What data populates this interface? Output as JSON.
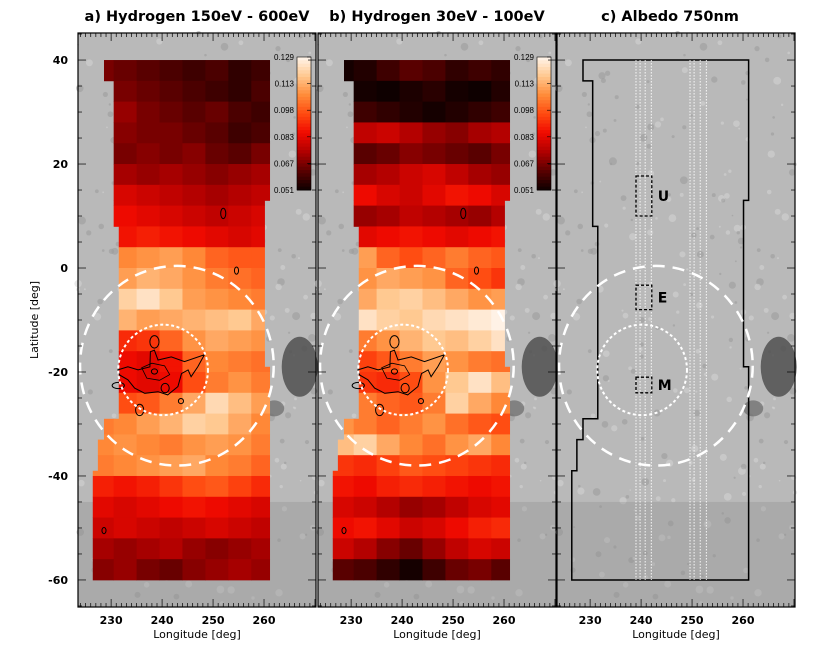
{
  "shared": {
    "xlabel": "Longitude [deg]",
    "ylabel": "Latitude [deg]",
    "xlim": [
      223.5,
      270.2
    ],
    "ylim": [
      -65.2,
      45.2
    ],
    "xticks": [
      230,
      240,
      250,
      260
    ],
    "yticks": [
      40,
      20,
      0,
      -20,
      -40,
      -60
    ],
    "colormap": [
      "#0e0000",
      "#5a0000",
      "#b00000",
      "#f00a00",
      "#ff4a10",
      "#ff8c3a",
      "#ffc890",
      "#fff6ee"
    ],
    "colorbar": {
      "min": 0.051,
      "max": 0.129,
      "ticks": [
        "0.129",
        "0.113",
        "0.098",
        "0.083",
        "0.067",
        "0.051"
      ]
    },
    "footprint": [
      {
        "lat_top": 40,
        "lat_bottom": 36,
        "lon_min": 228.6,
        "lon_max": 261.1
      },
      {
        "lat_top": 36,
        "lat_bottom": 13,
        "lon_min": 230.5,
        "lon_max": 261.1
      },
      {
        "lat_top": 13,
        "lat_bottom": 8,
        "lon_min": 230.5,
        "lon_max": 260.1
      },
      {
        "lat_top": 8,
        "lat_bottom": -19,
        "lon_min": 231.5,
        "lon_max": 260.1
      },
      {
        "lat_top": -19,
        "lat_bottom": -29,
        "lon_min": 231.5,
        "lon_max": 261.1
      },
      {
        "lat_top": -29,
        "lat_bottom": -33,
        "lon_min": 228.6,
        "lon_max": 261.1
      },
      {
        "lat_top": -33,
        "lat_bottom": -39,
        "lon_min": 227.4,
        "lon_max": 261.1
      },
      {
        "lat_top": -39,
        "lat_bottom": -60,
        "lon_min": 226.4,
        "lon_max": 261.1
      }
    ],
    "outer_ring": {
      "lon": 242.9,
      "lat": -18.8,
      "r_lon": 19.0,
      "r_lat": 19.2
    },
    "inner_ring": {
      "lon": 240.2,
      "lat": -19.6,
      "r_lon": 8.8,
      "r_lat": 8.7
    },
    "contour_main": [
      [
        231.3,
        -19.6
      ],
      [
        233.3,
        -19.0
      ],
      [
        235.3,
        -19.6
      ],
      [
        237.6,
        -19.0
      ],
      [
        237.7,
        -16.1
      ],
      [
        238.5,
        -15.8
      ],
      [
        239.2,
        -17.7
      ],
      [
        241.8,
        -17.1
      ],
      [
        244.4,
        -18.0
      ],
      [
        248.3,
        -16.7
      ],
      [
        247.0,
        -19.0
      ],
      [
        245.7,
        -20.9
      ],
      [
        245.1,
        -19.6
      ],
      [
        243.8,
        -20.3
      ],
      [
        243.1,
        -22.8
      ],
      [
        241.1,
        -24.4
      ],
      [
        239.2,
        -23.8
      ],
      [
        236.6,
        -24.1
      ],
      [
        234.6,
        -23.1
      ],
      [
        233.3,
        -21.5
      ],
      [
        231.7,
        -20.6
      ]
    ],
    "contour_inner": [
      [
        236.0,
        -19.2
      ],
      [
        238.0,
        -18.3
      ],
      [
        240.5,
        -18.8
      ],
      [
        241.5,
        -20.5
      ],
      [
        239.5,
        -21.6
      ],
      [
        237.0,
        -21.2
      ]
    ],
    "contour_loops": [
      [
        238.5,
        -14.2,
        0.9,
        1.2
      ],
      [
        235.6,
        -27.3,
        0.8,
        1.1
      ],
      [
        238.5,
        -19.9,
        0.6,
        0.5
      ],
      [
        240.6,
        -23.1,
        0.8,
        0.9
      ],
      [
        231.4,
        -22.6,
        1.2,
        0.6
      ],
      [
        243.7,
        -25.6,
        0.5,
        0.5
      ],
      [
        252.0,
        10.5,
        0.5,
        1.0
      ],
      [
        254.6,
        -0.5,
        0.4,
        0.7
      ],
      [
        228.6,
        -50.5,
        0.4,
        0.6
      ]
    ]
  },
  "chart_data": [
    {
      "type": "heatmap",
      "title": "a) Hydrogen 150eV - 600eV",
      "xlabel": "Longitude [deg]",
      "ylabel": "Latitude [deg]",
      "lat_edges": [
        40,
        36,
        32,
        28,
        24,
        20,
        16,
        12,
        8,
        4,
        0,
        -4,
        -8,
        -12,
        -16,
        -20,
        -24,
        -28,
        -32,
        -36,
        -40,
        -44,
        -48,
        -52,
        -56,
        -60
      ],
      "lon_edges": [
        226,
        230.5,
        235,
        239.5,
        244,
        248.5,
        253,
        257.5,
        262
      ],
      "values": [
        [
          0.066,
          0.064,
          0.062,
          0.06,
          0.058,
          0.06,
          0.056,
          0.058
        ],
        [
          0.068,
          0.066,
          0.064,
          0.062,
          0.06,
          0.058,
          0.056,
          0.06
        ],
        [
          0.068,
          0.07,
          0.066,
          0.064,
          0.062,
          0.064,
          0.06,
          0.058
        ],
        [
          0.07,
          0.068,
          0.066,
          0.066,
          0.064,
          0.062,
          0.058,
          0.06
        ],
        [
          0.064,
          0.066,
          0.068,
          0.066,
          0.068,
          0.064,
          0.062,
          0.066
        ],
        [
          0.074,
          0.072,
          0.07,
          0.072,
          0.07,
          0.068,
          0.07,
          0.072
        ],
        [
          0.078,
          0.08,
          0.078,
          0.076,
          0.074,
          0.072,
          0.074,
          0.076
        ],
        [
          0.082,
          0.084,
          0.082,
          0.08,
          0.078,
          0.076,
          0.078,
          0.08
        ],
        [
          0.085,
          0.086,
          0.088,
          0.086,
          0.084,
          0.082,
          0.08,
          0.082
        ],
        [
          0.104,
          0.106,
          0.108,
          0.11,
          0.106,
          0.1,
          0.098,
          0.098
        ],
        [
          0.108,
          0.11,
          0.114,
          0.112,
          0.108,
          0.104,
          0.102,
          0.1
        ],
        [
          0.116,
          0.12,
          0.124,
          0.118,
          0.11,
          0.108,
          0.106,
          0.104
        ],
        [
          0.118,
          0.114,
          0.11,
          0.112,
          0.114,
          0.116,
          0.118,
          0.112
        ],
        [
          0.094,
          0.09,
          0.092,
          0.1,
          0.108,
          0.112,
          0.11,
          0.108
        ],
        [
          0.086,
          0.084,
          0.082,
          0.086,
          0.1,
          0.106,
          0.104,
          0.102
        ],
        [
          0.088,
          0.084,
          0.082,
          0.084,
          0.096,
          0.104,
          0.108,
          0.104
        ],
        [
          0.1,
          0.096,
          0.098,
          0.104,
          0.112,
          0.122,
          0.116,
          0.11
        ],
        [
          0.104,
          0.106,
          0.11,
          0.114,
          0.12,
          0.118,
          0.112,
          0.106
        ],
        [
          0.106,
          0.108,
          0.106,
          0.104,
          0.108,
          0.11,
          0.108,
          0.104
        ],
        [
          0.104,
          0.106,
          0.108,
          0.11,
          0.112,
          0.106,
          0.104,
          0.1
        ],
        [
          0.088,
          0.086,
          0.088,
          0.092,
          0.096,
          0.098,
          0.094,
          0.09
        ],
        [
          0.082,
          0.08,
          0.082,
          0.084,
          0.086,
          0.084,
          0.082,
          0.08
        ],
        [
          0.078,
          0.08,
          0.078,
          0.076,
          0.078,
          0.08,
          0.078,
          0.076
        ],
        [
          0.072,
          0.07,
          0.072,
          0.074,
          0.07,
          0.068,
          0.07,
          0.072
        ],
        [
          0.068,
          0.07,
          0.066,
          0.064,
          0.068,
          0.07,
          0.072,
          0.07
        ]
      ]
    },
    {
      "type": "heatmap",
      "title": "b) Hydrogen 30eV - 100eV",
      "xlabel": "Longitude [deg]",
      "lat_edges": [
        40,
        36,
        32,
        28,
        24,
        20,
        16,
        12,
        8,
        4,
        0,
        -4,
        -8,
        -12,
        -16,
        -20,
        -24,
        -28,
        -32,
        -36,
        -40,
        -44,
        -48,
        -52,
        -56,
        -60
      ],
      "lon_edges": [
        226,
        230.5,
        235,
        239.5,
        244,
        248.5,
        253,
        257.5,
        262
      ],
      "values": [
        [
          0.052,
          0.054,
          0.058,
          0.062,
          0.06,
          0.056,
          0.058,
          0.056
        ],
        [
          0.056,
          0.052,
          0.051,
          0.053,
          0.055,
          0.052,
          0.051,
          0.054
        ],
        [
          0.06,
          0.058,
          0.056,
          0.054,
          0.052,
          0.054,
          0.056,
          0.058
        ],
        [
          0.072,
          0.076,
          0.078,
          0.074,
          0.07,
          0.068,
          0.072,
          0.074
        ],
        [
          0.066,
          0.062,
          0.064,
          0.068,
          0.066,
          0.064,
          0.062,
          0.066
        ],
        [
          0.07,
          0.072,
          0.074,
          0.078,
          0.08,
          0.076,
          0.072,
          0.07
        ],
        [
          0.082,
          0.084,
          0.08,
          0.078,
          0.082,
          0.086,
          0.084,
          0.08
        ],
        [
          0.074,
          0.07,
          0.072,
          0.076,
          0.074,
          0.072,
          0.07,
          0.074
        ],
        [
          0.08,
          0.082,
          0.084,
          0.086,
          0.084,
          0.082,
          0.084,
          0.086
        ],
        [
          0.112,
          0.11,
          0.1,
          0.096,
          0.1,
          0.104,
          0.1,
          0.098
        ],
        [
          0.104,
          0.108,
          0.112,
          0.11,
          0.108,
          0.1,
          0.096,
          0.092
        ],
        [
          0.108,
          0.112,
          0.118,
          0.12,
          0.116,
          0.112,
          0.108,
          0.11
        ],
        [
          0.12,
          0.124,
          0.12,
          0.118,
          0.122,
          0.124,
          0.126,
          0.128
        ],
        [
          0.1,
          0.104,
          0.108,
          0.114,
          0.118,
          0.116,
          0.12,
          0.124
        ],
        [
          0.096,
          0.094,
          0.098,
          0.104,
          0.11,
          0.108,
          0.104,
          0.102
        ],
        [
          0.094,
          0.092,
          0.09,
          0.096,
          0.108,
          0.118,
          0.124,
          0.116
        ],
        [
          0.102,
          0.104,
          0.1,
          0.098,
          0.104,
          0.12,
          0.112,
          0.106
        ],
        [
          0.108,
          0.104,
          0.1,
          0.104,
          0.108,
          0.102,
          0.098,
          0.096
        ],
        [
          0.116,
          0.12,
          0.112,
          0.106,
          0.102,
          0.108,
          0.112,
          0.106
        ],
        [
          0.092,
          0.09,
          0.094,
          0.098,
          0.096,
          0.094,
          0.092,
          0.09
        ],
        [
          0.086,
          0.084,
          0.088,
          0.09,
          0.088,
          0.086,
          0.084,
          0.086
        ],
        [
          0.08,
          0.078,
          0.074,
          0.07,
          0.072,
          0.076,
          0.08,
          0.082
        ],
        [
          0.084,
          0.086,
          0.082,
          0.078,
          0.08,
          0.084,
          0.088,
          0.09
        ],
        [
          0.078,
          0.074,
          0.068,
          0.064,
          0.07,
          0.076,
          0.08,
          0.078
        ],
        [
          0.062,
          0.06,
          0.056,
          0.052,
          0.058,
          0.064,
          0.066,
          0.062
        ]
      ]
    },
    {
      "type": "heatmap",
      "title": "c)   Albedo 750nm",
      "xlabel": "Longitude [deg]",
      "regions": [
        {
          "label": "U",
          "lon_min": 239.0,
          "lon_max": 242.1,
          "lat_top": 17.7,
          "lat_bottom": 10.0
        },
        {
          "label": "E",
          "lon_min": 239.0,
          "lon_max": 242.1,
          "lat_top": -3.3,
          "lat_bottom": -8.0
        },
        {
          "label": "M",
          "lon_min": 239.0,
          "lon_max": 242.1,
          "lat_top": -21.0,
          "lat_bottom": -24.0
        }
      ],
      "track_lons": [
        239.0,
        239.8,
        240.8,
        242.0,
        249.6,
        250.4,
        251.6,
        252.8
      ]
    }
  ]
}
